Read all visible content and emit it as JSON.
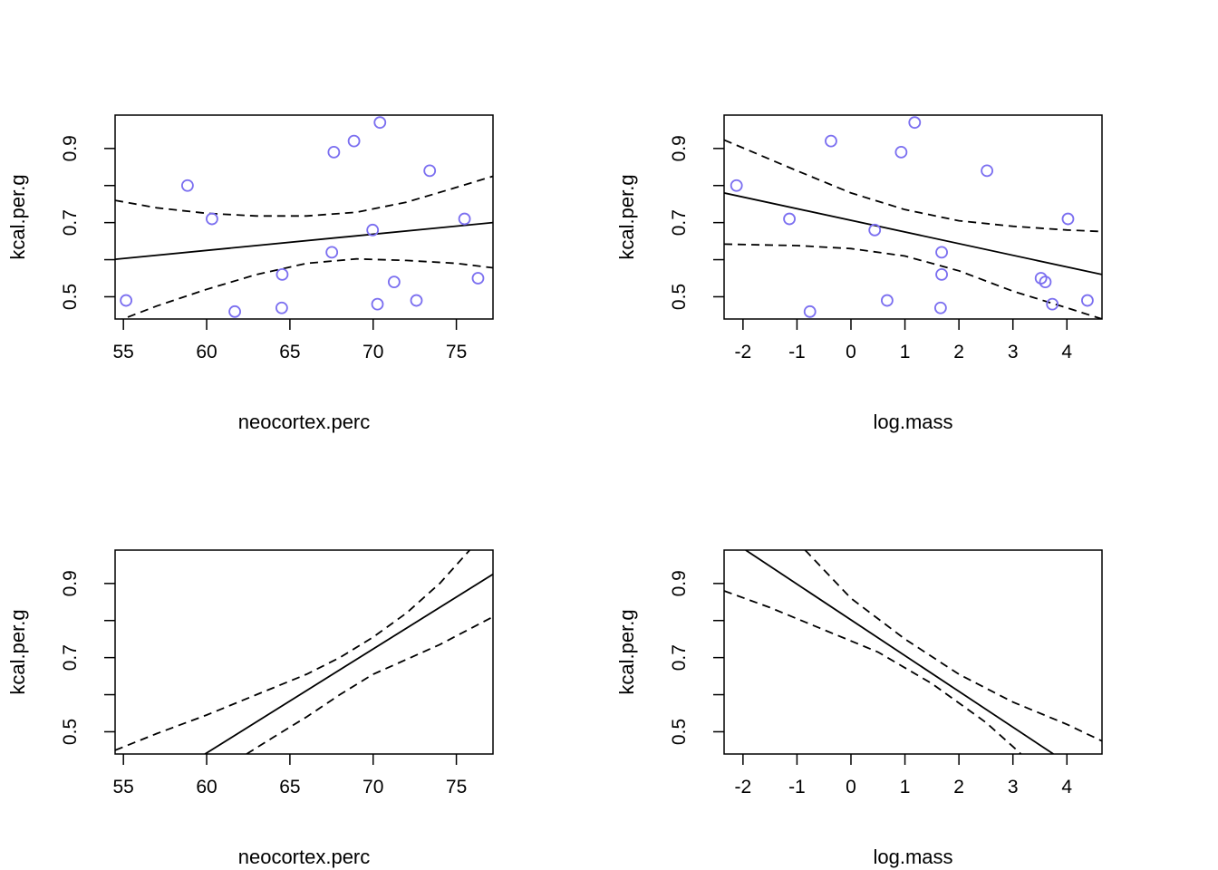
{
  "colors": {
    "points": "#7b6ff0",
    "lines": "#000000",
    "background": "#ffffff"
  },
  "chart_data": [
    {
      "type": "scatter",
      "xlabel": "neocortex.perc",
      "ylabel": "kcal.per.g",
      "xlim": [
        54.5,
        77.2
      ],
      "ylim": [
        0.44,
        0.99
      ],
      "x_ticks": [
        "55",
        "60",
        "65",
        "70",
        "75"
      ],
      "y_ticks": [
        "0.5",
        "0.7",
        "0.9"
      ],
      "y_minor_ticks": [
        0.6,
        0.8
      ],
      "points": [
        [
          55.16,
          0.49
        ],
        [
          58.85,
          0.8
        ],
        [
          60.32,
          0.71
        ],
        [
          61.69,
          0.46
        ],
        [
          64.51,
          0.47
        ],
        [
          64.54,
          0.56
        ],
        [
          67.52,
          0.62
        ],
        [
          67.64,
          0.89
        ],
        [
          68.85,
          0.92
        ],
        [
          69.97,
          0.68
        ],
        [
          70.26,
          0.48
        ],
        [
          70.41,
          0.97
        ],
        [
          71.26,
          0.54
        ],
        [
          72.6,
          0.49
        ],
        [
          73.4,
          0.84
        ],
        [
          75.49,
          0.71
        ],
        [
          76.3,
          0.55
        ]
      ],
      "mean_line": [
        [
          54.5,
          0.601
        ],
        [
          77.2,
          0.7
        ]
      ],
      "interval_lower": [
        [
          54.5,
          0.432
        ],
        [
          57,
          0.475
        ],
        [
          60,
          0.52
        ],
        [
          63,
          0.56
        ],
        [
          66,
          0.59
        ],
        [
          69,
          0.602
        ],
        [
          72,
          0.598
        ],
        [
          75,
          0.59
        ],
        [
          77.2,
          0.578
        ]
      ],
      "interval_upper": [
        [
          54.5,
          0.76
        ],
        [
          57,
          0.74
        ],
        [
          60,
          0.725
        ],
        [
          63,
          0.718
        ],
        [
          66,
          0.718
        ],
        [
          69,
          0.728
        ],
        [
          72,
          0.755
        ],
        [
          75,
          0.795
        ],
        [
          77.2,
          0.825
        ]
      ]
    },
    {
      "type": "scatter",
      "xlabel": "log.mass",
      "ylabel": "kcal.per.g",
      "xlim": [
        -2.35,
        4.65
      ],
      "ylim": [
        0.44,
        0.99
      ],
      "x_ticks": [
        "-2",
        "-1",
        "0",
        "1",
        "2",
        "3",
        "4"
      ],
      "y_ticks": [
        "0.5",
        "0.7",
        "0.9"
      ],
      "y_minor_ticks": [
        0.6,
        0.8
      ],
      "points": [
        [
          -2.12,
          0.8
        ],
        [
          -1.14,
          0.71
        ],
        [
          -0.76,
          0.46
        ],
        [
          -0.37,
          0.92
        ],
        [
          0.44,
          0.68
        ],
        [
          0.67,
          0.49
        ],
        [
          0.93,
          0.89
        ],
        [
          1.18,
          0.97
        ],
        [
          1.66,
          0.47
        ],
        [
          1.68,
          0.62
        ],
        [
          1.68,
          0.56
        ],
        [
          2.52,
          0.84
        ],
        [
          3.52,
          0.55
        ],
        [
          3.6,
          0.54
        ],
        [
          3.73,
          0.48
        ],
        [
          4.02,
          0.71
        ],
        [
          4.38,
          0.49
        ]
      ],
      "mean_line": [
        [
          -2.35,
          0.78
        ],
        [
          4.65,
          0.56
        ]
      ],
      "interval_lower": [
        [
          -2.35,
          0.642
        ],
        [
          -1,
          0.638
        ],
        [
          0,
          0.63
        ],
        [
          1,
          0.61
        ],
        [
          2,
          0.57
        ],
        [
          3,
          0.515
        ],
        [
          4,
          0.47
        ],
        [
          4.65,
          0.44
        ]
      ],
      "interval_upper": [
        [
          -2.35,
          0.923
        ],
        [
          -1,
          0.84
        ],
        [
          0,
          0.78
        ],
        [
          1,
          0.735
        ],
        [
          2,
          0.705
        ],
        [
          3,
          0.69
        ],
        [
          4,
          0.68
        ],
        [
          4.65,
          0.676
        ]
      ]
    },
    {
      "type": "line",
      "xlabel": "neocortex.perc",
      "ylabel": "kcal.per.g",
      "xlim": [
        54.5,
        77.2
      ],
      "ylim": [
        0.44,
        0.99
      ],
      "x_ticks": [
        "55",
        "60",
        "65",
        "70",
        "75"
      ],
      "y_ticks": [
        "0.5",
        "0.7",
        "0.9"
      ],
      "y_minor_ticks": [
        0.6,
        0.8
      ],
      "mean_line": [
        [
          59.9,
          0.44
        ],
        [
          77.2,
          0.925
        ]
      ],
      "interval_lower": [
        [
          62.4,
          0.44
        ],
        [
          64,
          0.485
        ],
        [
          66,
          0.54
        ],
        [
          68,
          0.6
        ],
        [
          70,
          0.655
        ],
        [
          72,
          0.695
        ],
        [
          74,
          0.735
        ],
        [
          77.2,
          0.81
        ]
      ],
      "interval_upper": [
        [
          54.5,
          0.45
        ],
        [
          57,
          0.495
        ],
        [
          60,
          0.545
        ],
        [
          63,
          0.6
        ],
        [
          66,
          0.655
        ],
        [
          68,
          0.7
        ],
        [
          70,
          0.755
        ],
        [
          72,
          0.82
        ],
        [
          74,
          0.9
        ],
        [
          75.8,
          0.99
        ]
      ]
    },
    {
      "type": "line",
      "xlabel": "log.mass",
      "ylabel": "kcal.per.g",
      "xlim": [
        -2.35,
        4.65
      ],
      "ylim": [
        0.44,
        0.99
      ],
      "x_ticks": [
        "-2",
        "-1",
        "0",
        "1",
        "2",
        "3",
        "4"
      ],
      "y_ticks": [
        "0.5",
        "0.7",
        "0.9"
      ],
      "y_minor_ticks": [
        0.6,
        0.8
      ],
      "mean_line": [
        [
          -1.95,
          0.99
        ],
        [
          3.75,
          0.44
        ]
      ],
      "interval_lower": [
        [
          -2.35,
          0.88
        ],
        [
          -1.5,
          0.835
        ],
        [
          -0.5,
          0.775
        ],
        [
          0.5,
          0.715
        ],
        [
          1.5,
          0.63
        ],
        [
          2.5,
          0.525
        ],
        [
          3.0,
          0.46
        ],
        [
          3.15,
          0.44
        ]
      ],
      "interval_upper": [
        [
          -0.85,
          0.99
        ],
        [
          0,
          0.86
        ],
        [
          1,
          0.75
        ],
        [
          2,
          0.655
        ],
        [
          3,
          0.58
        ],
        [
          4,
          0.52
        ],
        [
          4.65,
          0.475
        ]
      ]
    }
  ]
}
